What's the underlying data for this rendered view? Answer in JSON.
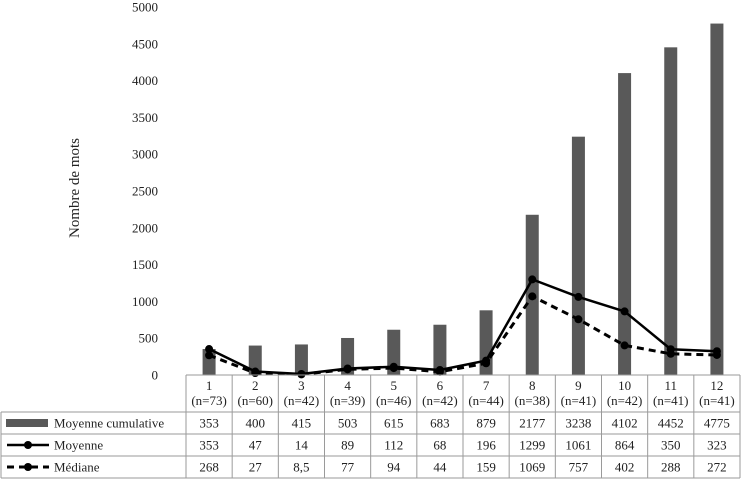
{
  "chart_data": {
    "type": "bar",
    "categories": [
      "1",
      "2",
      "3",
      "4",
      "5",
      "6",
      "7",
      "8",
      "9",
      "10",
      "11",
      "12"
    ],
    "category_counts": [
      "(n=73)",
      "(n=60)",
      "(n=42)",
      "(n=39)",
      "(n=46)",
      "(n=42)",
      "(n=44)",
      "(n=38)",
      "(n=41)",
      "(n=42)",
      "(n=41)",
      "(n=41)"
    ],
    "series": [
      {
        "name": "Moyenne cumulative",
        "kind": "bar",
        "color": "#595959",
        "values": [
          353,
          400,
          415,
          503,
          615,
          683,
          879,
          2177,
          3238,
          4102,
          4452,
          4775
        ],
        "labels": [
          "353",
          "400",
          "415",
          "503",
          "615",
          "683",
          "879",
          "2177",
          "3238",
          "4102",
          "4452",
          "4775"
        ]
      },
      {
        "name": "Moyenne",
        "kind": "line",
        "style": "solid",
        "color": "#000000",
        "values": [
          353,
          47,
          14,
          89,
          112,
          68,
          196,
          1299,
          1061,
          864,
          350,
          323
        ],
        "labels": [
          "353",
          "47",
          "14",
          "89",
          "112",
          "68",
          "196",
          "1299",
          "1061",
          "864",
          "350",
          "323"
        ]
      },
      {
        "name": "Médiane",
        "kind": "line",
        "style": "dashed",
        "color": "#000000",
        "values": [
          268,
          27,
          8.5,
          77,
          94,
          44,
          159,
          1069,
          757,
          402,
          288,
          272
        ],
        "labels": [
          "268",
          "27",
          "8,5",
          "77",
          "94",
          "44",
          "159",
          "1069",
          "757",
          "402",
          "288",
          "272"
        ]
      }
    ],
    "ylabel": "Nombre de mots",
    "ylim": [
      0,
      5000
    ],
    "yticks": [
      "0",
      "500",
      "1000",
      "1500",
      "2000",
      "2500",
      "3000",
      "3500",
      "4000",
      "4500",
      "5000"
    ],
    "grid": false,
    "legend": "data-table"
  }
}
